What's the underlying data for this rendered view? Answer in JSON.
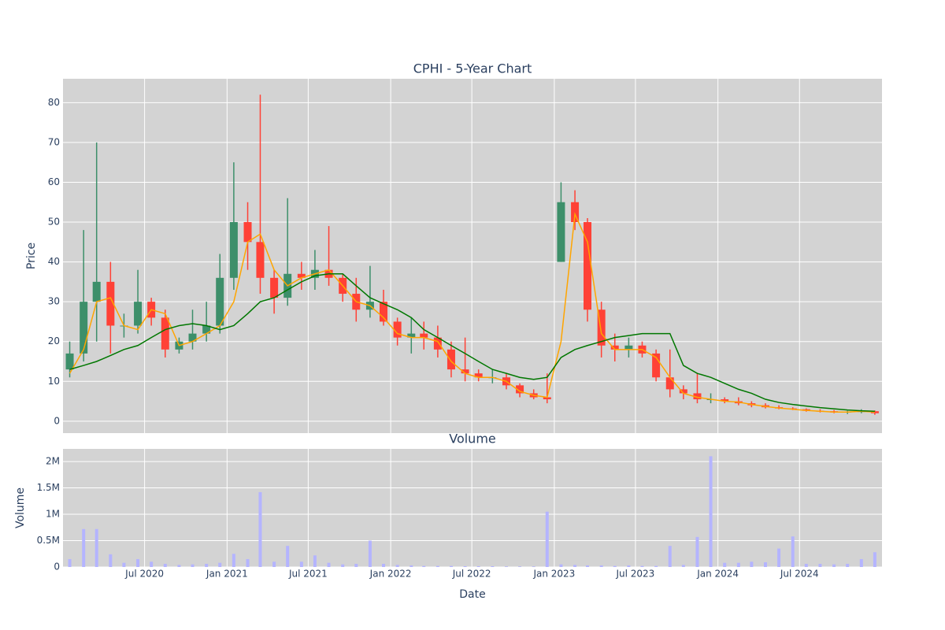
{
  "chart_data": [
    {
      "type": "candlestick",
      "title": "CPHI - 5-Year Chart",
      "y_label": "Price",
      "x": [
        "2020-01",
        "2020-02",
        "2020-03",
        "2020-04",
        "2020-05",
        "2020-06",
        "2020-07",
        "2020-08",
        "2020-09",
        "2020-10",
        "2020-11",
        "2020-12",
        "2021-01",
        "2021-02",
        "2021-03",
        "2021-04",
        "2021-05",
        "2021-06",
        "2021-07",
        "2021-08",
        "2021-09",
        "2021-10",
        "2021-11",
        "2021-12",
        "2022-01",
        "2022-02",
        "2022-03",
        "2022-04",
        "2022-05",
        "2022-06",
        "2022-07",
        "2022-08",
        "2022-09",
        "2022-10",
        "2022-11",
        "2022-12",
        "2023-01",
        "2023-02",
        "2023-03",
        "2023-04",
        "2023-05",
        "2023-06",
        "2023-07",
        "2023-08",
        "2023-09",
        "2023-10",
        "2023-11",
        "2023-12",
        "2024-01",
        "2024-02",
        "2024-03",
        "2024-04",
        "2024-05",
        "2024-06",
        "2024-07",
        "2024-08",
        "2024-09",
        "2024-10",
        "2024-11",
        "2024-12"
      ],
      "open": [
        13,
        17,
        30,
        35,
        24,
        24,
        30,
        26,
        18,
        20,
        22,
        24,
        36,
        50,
        45,
        36,
        31,
        37,
        36,
        38,
        36,
        32,
        28,
        30,
        25,
        21,
        22,
        21,
        18,
        13,
        12,
        11,
        11,
        9,
        7,
        6,
        40,
        55,
        50,
        28,
        19,
        18,
        19,
        17,
        11,
        8,
        7,
        5.5,
        5.5,
        5,
        4.5,
        4,
        3.5,
        3.2,
        3,
        2.6,
        2.5,
        2.2,
        2.4,
        2.5
      ],
      "high": [
        20,
        48,
        70,
        40,
        27,
        38,
        31,
        28,
        21,
        28,
        30,
        42,
        65,
        55,
        82,
        38,
        56,
        40,
        43,
        49,
        37,
        36,
        39,
        33,
        26,
        26,
        25,
        24,
        20,
        21,
        13,
        13,
        12,
        9.5,
        8,
        12,
        60,
        58,
        51,
        30,
        22,
        21,
        20,
        18,
        18,
        9,
        12,
        7,
        6,
        6,
        5,
        4.5,
        4,
        3.5,
        3.2,
        3,
        2.8,
        2.6,
        3,
        2.7
      ],
      "low": [
        11,
        15,
        20,
        17,
        21,
        22,
        24,
        16,
        17,
        18,
        20,
        22,
        33,
        38,
        32,
        27,
        29,
        33,
        33,
        34,
        30,
        25,
        26,
        24,
        19,
        17,
        18,
        16,
        11,
        10,
        10,
        9.5,
        8,
        6,
        5.5,
        4.5,
        40,
        48,
        25,
        16,
        15,
        16,
        16,
        10,
        6,
        5.5,
        4.5,
        4.5,
        4.5,
        4,
        3.5,
        3.2,
        3,
        2.8,
        2.4,
        2.2,
        2,
        1.8,
        2,
        1.6
      ],
      "close": [
        17,
        30,
        35,
        24,
        24,
        30,
        26,
        18,
        20,
        22,
        24,
        36,
        50,
        45,
        36,
        31,
        37,
        36,
        38,
        36,
        32,
        28,
        30,
        25,
        21,
        22,
        21,
        18,
        13,
        12,
        11,
        11,
        9,
        7,
        6,
        5.5,
        55,
        50,
        28,
        19,
        18,
        19,
        17,
        11,
        8,
        7,
        5.5,
        5.5,
        5,
        4.5,
        4,
        3.5,
        3.2,
        3,
        2.6,
        2.5,
        2.2,
        2.4,
        2.5,
        2
      ],
      "up_color": "#3d8f6a",
      "down_color": "#ff4136",
      "series": [
        {
          "color": "#ffa500",
          "values": [
            12,
            18,
            30,
            31,
            24,
            23,
            28,
            27,
            19,
            20,
            22,
            24,
            30,
            45,
            47,
            38,
            34,
            36,
            37,
            38,
            34,
            30,
            29,
            26,
            22,
            21,
            21,
            20,
            15,
            12,
            11,
            11,
            10,
            7.5,
            6.5,
            6,
            20,
            52,
            45,
            22,
            18,
            18,
            18,
            16,
            11,
            7,
            6,
            5.5,
            5,
            4.8,
            4.2,
            3.7,
            3.3,
            3,
            2.7,
            2.5,
            2.3,
            2.3,
            2.5,
            2.3
          ]
        },
        {
          "color": "#007700",
          "values": [
            13,
            14,
            15,
            16.5,
            18,
            19,
            21,
            23,
            24,
            24.5,
            24,
            23,
            24,
            27,
            30,
            31,
            33,
            35,
            36.5,
            37,
            37,
            34,
            31,
            29.5,
            28,
            26,
            23,
            21,
            19,
            17,
            15,
            13,
            12,
            11,
            10.5,
            11,
            16,
            18,
            19,
            20,
            21,
            21.5,
            22,
            22,
            22,
            14,
            12,
            11,
            9.5,
            8,
            7,
            5.5,
            4.7,
            4.2,
            3.8,
            3.4,
            3.1,
            2.8,
            2.6,
            2.5
          ]
        }
      ],
      "ylim": [
        -3,
        86
      ],
      "yticks": [
        0,
        10,
        20,
        30,
        40,
        50,
        60,
        70,
        80
      ],
      "grid": true
    },
    {
      "type": "bar",
      "title": "Volume",
      "y_label": "Volume",
      "x_label": "Date",
      "color": "#b4b4ff",
      "values": [
        150000,
        720000,
        720000,
        240000,
        80000,
        150000,
        100000,
        60000,
        40000,
        50000,
        60000,
        80000,
        250000,
        150000,
        1420000,
        100000,
        400000,
        100000,
        220000,
        80000,
        50000,
        60000,
        500000,
        60000,
        40000,
        30000,
        20000,
        20000,
        20000,
        15000,
        15000,
        15000,
        10000,
        10000,
        10000,
        1050000,
        50000,
        40000,
        30000,
        30000,
        20000,
        30000,
        20000,
        20000,
        400000,
        40000,
        570000,
        2100000,
        80000,
        80000,
        100000,
        90000,
        350000,
        580000,
        60000,
        60000,
        50000,
        60000,
        150000,
        280000
      ],
      "xlim": [
        "2020-01",
        "2025-01"
      ],
      "xticks": [
        {
          "value": "2020-07",
          "label": "Jul 2020"
        },
        {
          "value": "2021-01",
          "label": "Jan 2021"
        },
        {
          "value": "2021-07",
          "label": "Jul 2021"
        },
        {
          "value": "2022-01",
          "label": "Jan 2022"
        },
        {
          "value": "2022-07",
          "label": "Jul 2022"
        },
        {
          "value": "2023-01",
          "label": "Jan 2023"
        },
        {
          "value": "2023-07",
          "label": "Jul 2023"
        },
        {
          "value": "2024-01",
          "label": "Jan 2024"
        },
        {
          "value": "2024-07",
          "label": "Jul 2024"
        }
      ],
      "ylim": [
        0,
        2240000
      ],
      "yticks": [
        0,
        {
          "value": 500000,
          "label": "0.5M"
        },
        {
          "value": 1000000,
          "label": "1M"
        },
        {
          "value": 1500000,
          "label": "1.5M"
        },
        {
          "value": 2000000,
          "label": "2M"
        }
      ],
      "grid": true
    }
  ]
}
